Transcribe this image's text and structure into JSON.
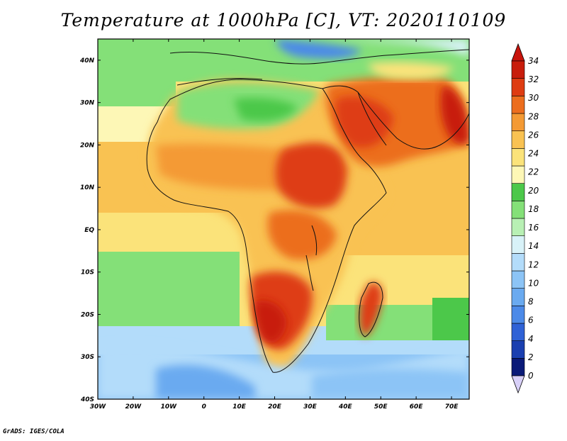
{
  "title": "Temperature at 1000hPa [C], VT: 2020110109",
  "credit": "GrADS: IGES/COLA",
  "map": {
    "lon_range": [
      -30,
      75
    ],
    "lat_range": [
      -40,
      45
    ],
    "lat_labels": [
      "40N",
      "30N",
      "20N",
      "10N",
      "EQ",
      "10S",
      "20S",
      "30S",
      "40S"
    ],
    "lat_values": [
      40,
      30,
      20,
      10,
      0,
      -10,
      -20,
      -30,
      -40
    ],
    "lon_labels": [
      "30W",
      "20W",
      "10W",
      "0",
      "10E",
      "20E",
      "30E",
      "40E",
      "50E",
      "60E",
      "70E"
    ],
    "lon_values": [
      -30,
      -20,
      -10,
      0,
      10,
      20,
      30,
      40,
      50,
      60,
      70
    ]
  },
  "colorbar": {
    "levels": [
      "0",
      "2",
      "4",
      "6",
      "8",
      "10",
      "12",
      "14",
      "16",
      "18",
      "20",
      "22",
      "24",
      "26",
      "28",
      "30",
      "32",
      "34"
    ],
    "colors": [
      "#0a1a78",
      "#1a3fb0",
      "#2f62d6",
      "#4c8ae8",
      "#6aaaf0",
      "#8cc4f6",
      "#b3dcfa",
      "#d8f2f8",
      "#b8f0b4",
      "#84e078",
      "#4cc84a",
      "#fdf7b6",
      "#fbe37a",
      "#f9c252",
      "#f49a34",
      "#ec6e1e",
      "#de3c12",
      "#c81d0c"
    ],
    "under_color": "#d8d0f8",
    "over_color": "#c8140c"
  }
}
